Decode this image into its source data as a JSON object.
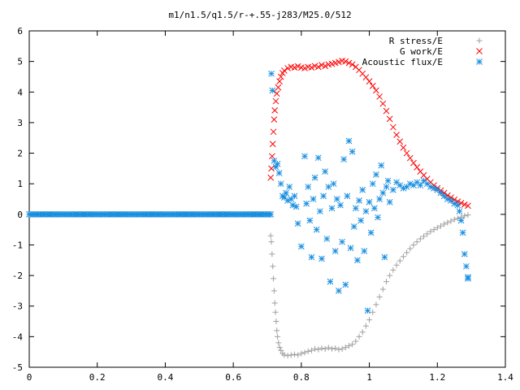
{
  "chart_data": {
    "type": "scatter",
    "title": "m1/n1.5/q1.5/r-+.55-j283/M25.0/512",
    "xlabel": "",
    "ylabel": "",
    "xlim": [
      0,
      1.4
    ],
    "ylim": [
      -5,
      6
    ],
    "x_ticks": [
      "0",
      "0.2",
      "0.4",
      "0.6",
      "0.8",
      "1",
      "1.2",
      "1.4"
    ],
    "y_ticks": [
      "6",
      "5",
      "4",
      "3",
      "2",
      "1",
      "0",
      "-1",
      "-2",
      "-3",
      "-4",
      "-5"
    ],
    "grid": false,
    "legend_position": "top-right",
    "series": [
      {
        "name": "R stress/E",
        "marker": "plus",
        "color": "#a0a0a0",
        "points": [
          [
            0.71,
            -0.7
          ],
          [
            0.712,
            -0.9
          ],
          [
            0.714,
            -1.3
          ],
          [
            0.716,
            -1.7
          ],
          [
            0.718,
            -2.1
          ],
          [
            0.72,
            -2.5
          ],
          [
            0.722,
            -2.9
          ],
          [
            0.724,
            -3.2
          ],
          [
            0.726,
            -3.5
          ],
          [
            0.728,
            -3.8
          ],
          [
            0.73,
            -4.0
          ],
          [
            0.733,
            -4.2
          ],
          [
            0.736,
            -4.35
          ],
          [
            0.74,
            -4.45
          ],
          [
            0.745,
            -4.55
          ],
          [
            0.75,
            -4.6
          ],
          [
            0.76,
            -4.62
          ],
          [
            0.77,
            -4.6
          ],
          [
            0.78,
            -4.58
          ],
          [
            0.79,
            -4.6
          ],
          [
            0.8,
            -4.55
          ],
          [
            0.81,
            -4.52
          ],
          [
            0.82,
            -4.48
          ],
          [
            0.83,
            -4.45
          ],
          [
            0.84,
            -4.4
          ],
          [
            0.85,
            -4.42
          ],
          [
            0.86,
            -4.38
          ],
          [
            0.87,
            -4.4
          ],
          [
            0.88,
            -4.36
          ],
          [
            0.89,
            -4.4
          ],
          [
            0.9,
            -4.38
          ],
          [
            0.91,
            -4.42
          ],
          [
            0.92,
            -4.4
          ],
          [
            0.93,
            -4.35
          ],
          [
            0.94,
            -4.3
          ],
          [
            0.95,
            -4.25
          ],
          [
            0.96,
            -4.15
          ],
          [
            0.97,
            -4.0
          ],
          [
            0.98,
            -3.85
          ],
          [
            0.99,
            -3.65
          ],
          [
            1.0,
            -3.45
          ],
          [
            1.01,
            -3.2
          ],
          [
            1.02,
            -2.95
          ],
          [
            1.03,
            -2.7
          ],
          [
            1.04,
            -2.45
          ],
          [
            1.05,
            -2.2
          ],
          [
            1.06,
            -2.0
          ],
          [
            1.07,
            -1.82
          ],
          [
            1.08,
            -1.66
          ],
          [
            1.09,
            -1.52
          ],
          [
            1.1,
            -1.38
          ],
          [
            1.11,
            -1.25
          ],
          [
            1.12,
            -1.12
          ],
          [
            1.13,
            -1.0
          ],
          [
            1.14,
            -0.9
          ],
          [
            1.15,
            -0.8
          ],
          [
            1.16,
            -0.72
          ],
          [
            1.17,
            -0.64
          ],
          [
            1.18,
            -0.56
          ],
          [
            1.19,
            -0.5
          ],
          [
            1.2,
            -0.44
          ],
          [
            1.21,
            -0.38
          ],
          [
            1.22,
            -0.32
          ],
          [
            1.23,
            -0.27
          ],
          [
            1.24,
            -0.22
          ],
          [
            1.25,
            -0.17
          ],
          [
            1.26,
            -0.13
          ],
          [
            1.27,
            -0.09
          ],
          [
            1.28,
            -0.05
          ],
          [
            1.29,
            -0.02
          ]
        ]
      },
      {
        "name": "G work/E",
        "marker": "cross",
        "color": "#ff0000",
        "points": [
          [
            0.71,
            1.2
          ],
          [
            0.712,
            1.5
          ],
          [
            0.714,
            1.9
          ],
          [
            0.716,
            2.3
          ],
          [
            0.718,
            2.7
          ],
          [
            0.72,
            3.1
          ],
          [
            0.722,
            3.4
          ],
          [
            0.725,
            3.7
          ],
          [
            0.728,
            3.95
          ],
          [
            0.732,
            4.15
          ],
          [
            0.736,
            4.35
          ],
          [
            0.74,
            4.5
          ],
          [
            0.745,
            4.62
          ],
          [
            0.75,
            4.7
          ],
          [
            0.76,
            4.78
          ],
          [
            0.77,
            4.82
          ],
          [
            0.78,
            4.8
          ],
          [
            0.79,
            4.84
          ],
          [
            0.8,
            4.8
          ],
          [
            0.81,
            4.78
          ],
          [
            0.82,
            4.82
          ],
          [
            0.83,
            4.8
          ],
          [
            0.84,
            4.85
          ],
          [
            0.85,
            4.82
          ],
          [
            0.86,
            4.88
          ],
          [
            0.87,
            4.85
          ],
          [
            0.88,
            4.9
          ],
          [
            0.89,
            4.92
          ],
          [
            0.9,
            4.95
          ],
          [
            0.91,
            4.98
          ],
          [
            0.92,
            5.02
          ],
          [
            0.93,
            5.0
          ],
          [
            0.94,
            4.95
          ],
          [
            0.95,
            4.9
          ],
          [
            0.96,
            4.82
          ],
          [
            0.97,
            4.72
          ],
          [
            0.98,
            4.6
          ],
          [
            0.99,
            4.48
          ],
          [
            1.0,
            4.35
          ],
          [
            1.01,
            4.2
          ],
          [
            1.02,
            4.05
          ],
          [
            1.03,
            3.85
          ],
          [
            1.04,
            3.62
          ],
          [
            1.05,
            3.38
          ],
          [
            1.06,
            3.12
          ],
          [
            1.07,
            2.85
          ],
          [
            1.08,
            2.6
          ],
          [
            1.09,
            2.38
          ],
          [
            1.1,
            2.18
          ],
          [
            1.11,
            2.0
          ],
          [
            1.12,
            1.84
          ],
          [
            1.13,
            1.68
          ],
          [
            1.14,
            1.54
          ],
          [
            1.15,
            1.4
          ],
          [
            1.16,
            1.28
          ],
          [
            1.17,
            1.16
          ],
          [
            1.18,
            1.05
          ],
          [
            1.19,
            0.95
          ],
          [
            1.2,
            0.86
          ],
          [
            1.21,
            0.78
          ],
          [
            1.22,
            0.7
          ],
          [
            1.23,
            0.62
          ],
          [
            1.24,
            0.55
          ],
          [
            1.25,
            0.48
          ],
          [
            1.26,
            0.42
          ],
          [
            1.27,
            0.37
          ],
          [
            1.28,
            0.32
          ],
          [
            1.29,
            0.28
          ]
        ]
      },
      {
        "name": "Acoustic flux/E",
        "marker": "star",
        "color": "#1a8fe0",
        "points": [
          [
            0.0,
            0
          ],
          [
            0.02,
            0
          ],
          [
            0.04,
            0
          ],
          [
            0.06,
            0
          ],
          [
            0.08,
            0
          ],
          [
            0.1,
            0
          ],
          [
            0.12,
            0
          ],
          [
            0.14,
            0
          ],
          [
            0.16,
            0
          ],
          [
            0.18,
            0
          ],
          [
            0.2,
            0
          ],
          [
            0.22,
            0
          ],
          [
            0.24,
            0
          ],
          [
            0.26,
            0
          ],
          [
            0.28,
            0
          ],
          [
            0.3,
            0
          ],
          [
            0.32,
            0
          ],
          [
            0.34,
            0
          ],
          [
            0.36,
            0
          ],
          [
            0.38,
            0
          ],
          [
            0.4,
            0
          ],
          [
            0.42,
            0
          ],
          [
            0.44,
            0
          ],
          [
            0.46,
            0
          ],
          [
            0.48,
            0
          ],
          [
            0.5,
            0
          ],
          [
            0.52,
            0
          ],
          [
            0.54,
            0
          ],
          [
            0.56,
            0
          ],
          [
            0.58,
            0
          ],
          [
            0.6,
            0
          ],
          [
            0.62,
            0
          ],
          [
            0.64,
            0
          ],
          [
            0.66,
            0
          ],
          [
            0.68,
            0
          ],
          [
            0.7,
            0
          ],
          [
            0.71,
            0.0
          ],
          [
            0.712,
            4.6
          ],
          [
            0.715,
            4.05
          ],
          [
            0.72,
            1.75
          ],
          [
            0.725,
            1.55
          ],
          [
            0.73,
            1.65
          ],
          [
            0.735,
            1.35
          ],
          [
            0.74,
            1.0
          ],
          [
            0.745,
            0.6
          ],
          [
            0.75,
            0.55
          ],
          [
            0.755,
            0.7
          ],
          [
            0.76,
            0.45
          ],
          [
            0.765,
            0.9
          ],
          [
            0.77,
            0.5
          ],
          [
            0.775,
            0.3
          ],
          [
            0.78,
            0.6
          ],
          [
            0.785,
            0.25
          ],
          [
            0.79,
            -0.3
          ],
          [
            0.8,
            -1.05
          ],
          [
            0.81,
            1.9
          ],
          [
            0.815,
            0.35
          ],
          [
            0.82,
            0.9
          ],
          [
            0.825,
            -0.2
          ],
          [
            0.83,
            -1.4
          ],
          [
            0.835,
            0.5
          ],
          [
            0.84,
            1.2
          ],
          [
            0.845,
            -0.5
          ],
          [
            0.85,
            1.85
          ],
          [
            0.855,
            0.1
          ],
          [
            0.86,
            -1.45
          ],
          [
            0.865,
            0.6
          ],
          [
            0.87,
            1.4
          ],
          [
            0.875,
            -0.8
          ],
          [
            0.88,
            0.9
          ],
          [
            0.885,
            -2.2
          ],
          [
            0.89,
            0.2
          ],
          [
            0.895,
            1.0
          ],
          [
            0.9,
            -1.2
          ],
          [
            0.905,
            0.5
          ],
          [
            0.91,
            -2.5
          ],
          [
            0.915,
            0.3
          ],
          [
            0.92,
            -0.9
          ],
          [
            0.925,
            1.8
          ],
          [
            0.93,
            -2.3
          ],
          [
            0.935,
            0.6
          ],
          [
            0.94,
            2.4
          ],
          [
            0.945,
            -1.1
          ],
          [
            0.95,
            2.05
          ],
          [
            0.955,
            -0.4
          ],
          [
            0.96,
            0.2
          ],
          [
            0.965,
            -1.5
          ],
          [
            0.97,
            0.45
          ],
          [
            0.975,
            -0.2
          ],
          [
            0.98,
            0.8
          ],
          [
            0.985,
            -1.2
          ],
          [
            0.99,
            0.1
          ],
          [
            0.995,
            -3.15
          ],
          [
            1.0,
            0.4
          ],
          [
            1.005,
            -0.6
          ],
          [
            1.01,
            1.0
          ],
          [
            1.015,
            0.2
          ],
          [
            1.02,
            1.3
          ],
          [
            1.025,
            -0.1
          ],
          [
            1.03,
            0.5
          ],
          [
            1.035,
            1.6
          ],
          [
            1.04,
            0.7
          ],
          [
            1.045,
            -1.4
          ],
          [
            1.05,
            0.9
          ],
          [
            1.055,
            1.1
          ],
          [
            1.06,
            0.4
          ],
          [
            1.07,
            0.8
          ],
          [
            1.08,
            1.05
          ],
          [
            1.09,
            0.95
          ],
          [
            1.1,
            0.85
          ],
          [
            1.11,
            0.9
          ],
          [
            1.12,
            1.0
          ],
          [
            1.13,
            0.95
          ],
          [
            1.14,
            1.05
          ],
          [
            1.15,
            0.95
          ],
          [
            1.16,
            1.1
          ],
          [
            1.17,
            1.0
          ],
          [
            1.18,
            0.9
          ],
          [
            1.19,
            0.85
          ],
          [
            1.2,
            0.8
          ],
          [
            1.21,
            0.7
          ],
          [
            1.22,
            0.6
          ],
          [
            1.23,
            0.5
          ],
          [
            1.24,
            0.45
          ],
          [
            1.25,
            0.35
          ],
          [
            1.26,
            0.3
          ],
          [
            1.265,
            0.1
          ],
          [
            1.27,
            -0.2
          ],
          [
            1.275,
            -0.6
          ],
          [
            1.28,
            -1.3
          ],
          [
            1.285,
            -1.7
          ],
          [
            1.29,
            -2.05
          ],
          [
            1.29,
            -2.1
          ]
        ]
      }
    ]
  }
}
